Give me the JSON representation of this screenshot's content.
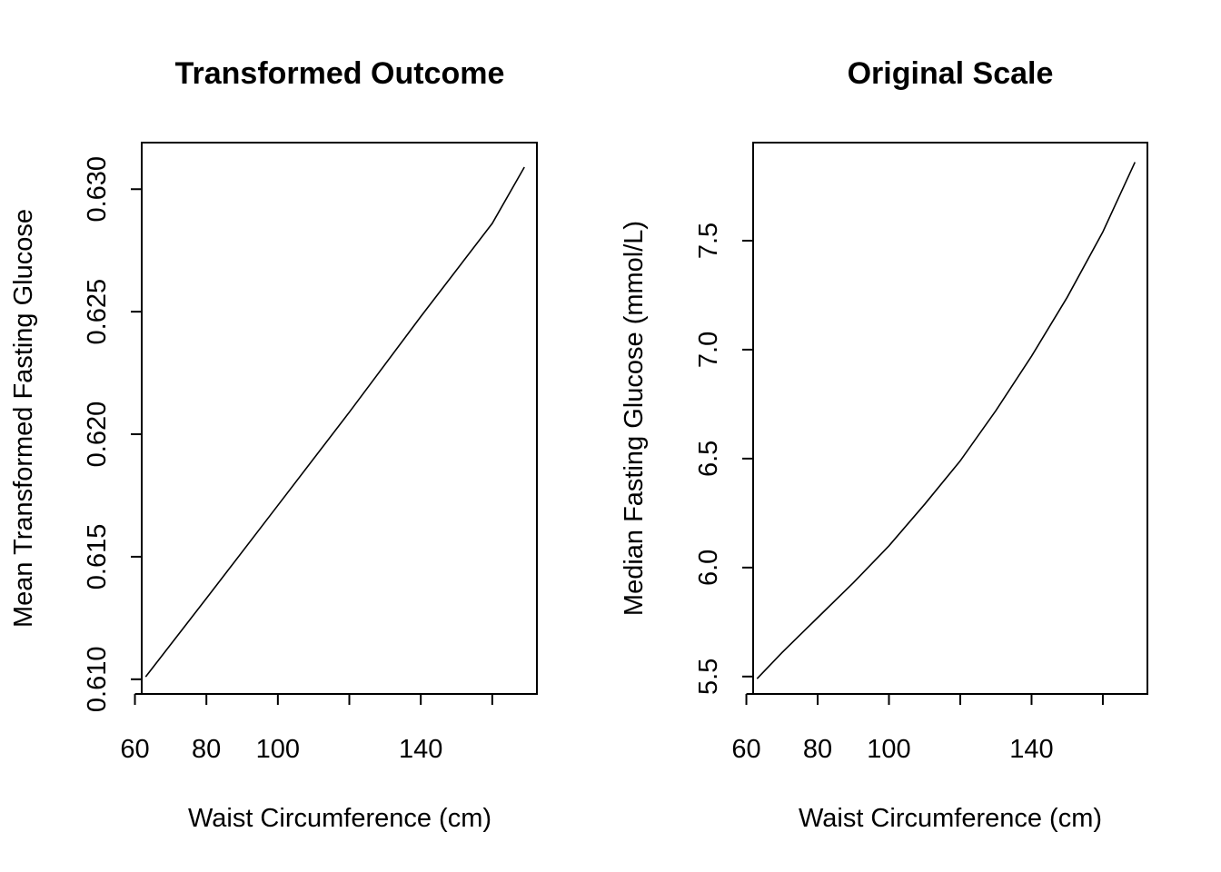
{
  "chart_data": [
    {
      "type": "line",
      "title": "Transformed Outcome",
      "xlabel": "Waist Circumference (cm)",
      "ylabel": "Mean Transformed Fasting Glucose",
      "xlim": [
        61.9,
        172.5
      ],
      "ylim": [
        0.6094,
        0.6319
      ],
      "x_ticks": [
        60,
        80,
        100,
        120,
        140,
        160
      ],
      "x_tick_labels": [
        "60",
        "80",
        "100",
        "",
        "140",
        ""
      ],
      "y_ticks": [
        0.61,
        0.615,
        0.62,
        0.625,
        0.63
      ],
      "y_tick_labels": [
        "0.610",
        "0.615",
        "0.620",
        "0.625",
        "0.630"
      ],
      "grid": false,
      "series": [
        {
          "x": [
            63,
            80,
            100,
            120,
            140,
            160,
            169
          ],
          "y": [
            0.6101,
            0.6133,
            0.6171,
            0.6209,
            0.6248,
            0.6286,
            0.6309
          ]
        }
      ]
    },
    {
      "type": "line",
      "title": "Original Scale",
      "xlabel": "Waist Circumference (cm)",
      "ylabel": "Median Fasting Glucose (mmol/L)",
      "xlim": [
        61.9,
        172.5
      ],
      "ylim": [
        5.42,
        7.95
      ],
      "x_ticks": [
        60,
        80,
        100,
        120,
        140,
        160
      ],
      "x_tick_labels": [
        "60",
        "80",
        "100",
        "",
        "140",
        ""
      ],
      "y_ticks": [
        5.5,
        6.0,
        6.5,
        7.0,
        7.5
      ],
      "y_tick_labels": [
        "5.5",
        "6.0",
        "6.5",
        "7.0",
        "7.5"
      ],
      "grid": false,
      "series": [
        {
          "x": [
            63,
            70,
            80,
            90,
            100,
            110,
            120,
            130,
            140,
            150,
            160,
            169
          ],
          "y": [
            5.49,
            5.61,
            5.77,
            5.93,
            6.1,
            6.29,
            6.49,
            6.72,
            6.97,
            7.24,
            7.54,
            7.86
          ]
        }
      ]
    }
  ]
}
